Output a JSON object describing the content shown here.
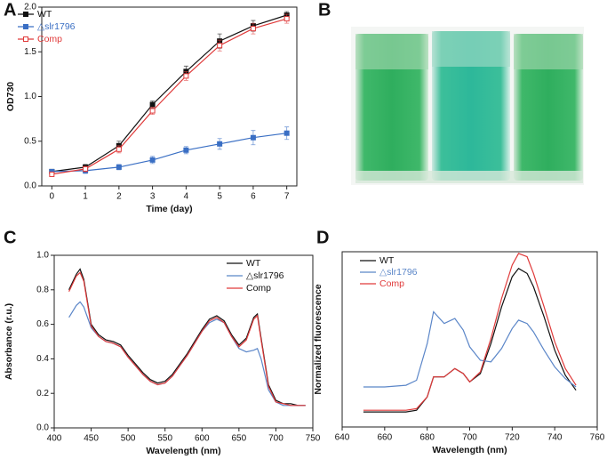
{
  "panels": [
    "A",
    "B",
    "C",
    "D"
  ],
  "chart_data": [
    {
      "type": "line",
      "xlabel": "Time (day)",
      "ylabel": "OD730",
      "x": [
        0,
        1,
        2,
        3,
        4,
        5,
        6,
        7
      ],
      "xlim": [
        -0.3,
        7.3
      ],
      "xticks": [
        0,
        1,
        2,
        3,
        4,
        5,
        6,
        7
      ],
      "ylim": [
        0,
        2.0
      ],
      "yticks": [
        {
          "value": 0,
          "label": "0.0"
        },
        {
          "value": 0.5,
          "label": "0.5"
        },
        {
          "value": 1.0,
          "label": "1.0"
        },
        {
          "value": 1.5,
          "label": "1.5"
        },
        {
          "value": 2.0,
          "label": "2.0"
        }
      ],
      "series": [
        {
          "name": "WT",
          "color": "#111111",
          "marker": "square",
          "values": [
            0.16,
            0.21,
            0.45,
            0.91,
            1.28,
            1.62,
            1.79,
            1.91
          ],
          "errors": [
            0.02,
            0.03,
            0.05,
            0.04,
            0.06,
            0.08,
            0.06,
            0.04
          ]
        },
        {
          "name": "△slr1796",
          "color": "#3a6fc4",
          "marker": "square",
          "values": [
            0.16,
            0.17,
            0.21,
            0.29,
            0.4,
            0.47,
            0.54,
            0.59
          ],
          "errors": [
            0.02,
            0.03,
            0.03,
            0.04,
            0.04,
            0.06,
            0.08,
            0.07
          ]
        },
        {
          "name": "Comp",
          "color": "#e03a3a",
          "marker": "open-square",
          "values": [
            0.13,
            0.19,
            0.41,
            0.84,
            1.23,
            1.57,
            1.76,
            1.87
          ],
          "errors": [
            0.02,
            0.03,
            0.04,
            0.04,
            0.05,
            0.06,
            0.06,
            0.05
          ]
        }
      ]
    },
    {
      "type": "line",
      "xlabel": "Wavelength (nm)",
      "ylabel": "Absorbance (r.u.)",
      "x": [
        420,
        430,
        435,
        440,
        450,
        460,
        470,
        480,
        490,
        500,
        510,
        520,
        530,
        540,
        550,
        560,
        570,
        580,
        590,
        600,
        610,
        620,
        630,
        640,
        650,
        660,
        670,
        675,
        680,
        690,
        700,
        710,
        720,
        730,
        740
      ],
      "xlim": [
        400,
        750
      ],
      "xticks": [
        400,
        450,
        500,
        550,
        600,
        650,
        700,
        750
      ],
      "ylim": [
        0,
        1.0
      ],
      "yticks": [
        {
          "value": 0,
          "label": "0.0"
        },
        {
          "value": 0.2,
          "label": "0.2"
        },
        {
          "value": 0.4,
          "label": "0.4"
        },
        {
          "value": 0.6,
          "label": "0.6"
        },
        {
          "value": 0.8,
          "label": "0.8"
        },
        {
          "value": 1.0,
          "label": "1.0"
        }
      ],
      "series": [
        {
          "name": "WT",
          "color": "#111111",
          "values": [
            0.8,
            0.89,
            0.92,
            0.86,
            0.6,
            0.54,
            0.51,
            0.5,
            0.48,
            0.42,
            0.37,
            0.32,
            0.28,
            0.26,
            0.27,
            0.31,
            0.37,
            0.43,
            0.5,
            0.57,
            0.63,
            0.65,
            0.62,
            0.54,
            0.48,
            0.52,
            0.64,
            0.66,
            0.52,
            0.25,
            0.16,
            0.14,
            0.14,
            0.13,
            0.13
          ]
        },
        {
          "name": "△slr1796",
          "color": "#5b86c8",
          "values": [
            0.64,
            0.71,
            0.73,
            0.7,
            0.58,
            0.53,
            0.5,
            0.49,
            0.47,
            0.41,
            0.36,
            0.31,
            0.27,
            0.25,
            0.26,
            0.3,
            0.36,
            0.42,
            0.49,
            0.56,
            0.61,
            0.63,
            0.61,
            0.53,
            0.46,
            0.44,
            0.45,
            0.46,
            0.4,
            0.22,
            0.15,
            0.13,
            0.13,
            0.13,
            0.13
          ]
        },
        {
          "name": "Comp",
          "color": "#e03a3a",
          "values": [
            0.79,
            0.88,
            0.9,
            0.85,
            0.59,
            0.53,
            0.5,
            0.49,
            0.47,
            0.41,
            0.36,
            0.31,
            0.27,
            0.25,
            0.26,
            0.3,
            0.36,
            0.42,
            0.49,
            0.56,
            0.62,
            0.64,
            0.61,
            0.53,
            0.47,
            0.51,
            0.63,
            0.65,
            0.51,
            0.24,
            0.15,
            0.14,
            0.13,
            0.13,
            0.13
          ]
        }
      ]
    },
    {
      "type": "line",
      "xlabel": "Wavelength (nm)",
      "ylabel": "Normalized fluorescence",
      "x": [
        650,
        660,
        670,
        675,
        680,
        683,
        688,
        693,
        697,
        700,
        705,
        710,
        715,
        720,
        723,
        727,
        730,
        735,
        740,
        745,
        750
      ],
      "xlim": [
        640,
        760
      ],
      "xticks": [
        640,
        660,
        680,
        700,
        720,
        740,
        760
      ],
      "ylim": [
        0,
        1.05
      ],
      "series": [
        {
          "name": "WT",
          "color": "#111111",
          "values": [
            0.09,
            0.09,
            0.09,
            0.1,
            0.18,
            0.3,
            0.3,
            0.35,
            0.32,
            0.27,
            0.32,
            0.5,
            0.72,
            0.9,
            0.95,
            0.92,
            0.84,
            0.66,
            0.46,
            0.31,
            0.22
          ]
        },
        {
          "name": "△slr1796",
          "color": "#5b86c8",
          "values": [
            0.24,
            0.24,
            0.25,
            0.28,
            0.5,
            0.69,
            0.62,
            0.65,
            0.58,
            0.48,
            0.4,
            0.39,
            0.47,
            0.59,
            0.64,
            0.62,
            0.57,
            0.46,
            0.36,
            0.29,
            0.24
          ]
        },
        {
          "name": "Comp",
          "color": "#e03a3a",
          "values": [
            0.1,
            0.1,
            0.1,
            0.11,
            0.18,
            0.3,
            0.3,
            0.35,
            0.32,
            0.27,
            0.33,
            0.53,
            0.77,
            0.97,
            1.04,
            1.02,
            0.92,
            0.72,
            0.51,
            0.35,
            0.25
          ]
        }
      ]
    }
  ]
}
